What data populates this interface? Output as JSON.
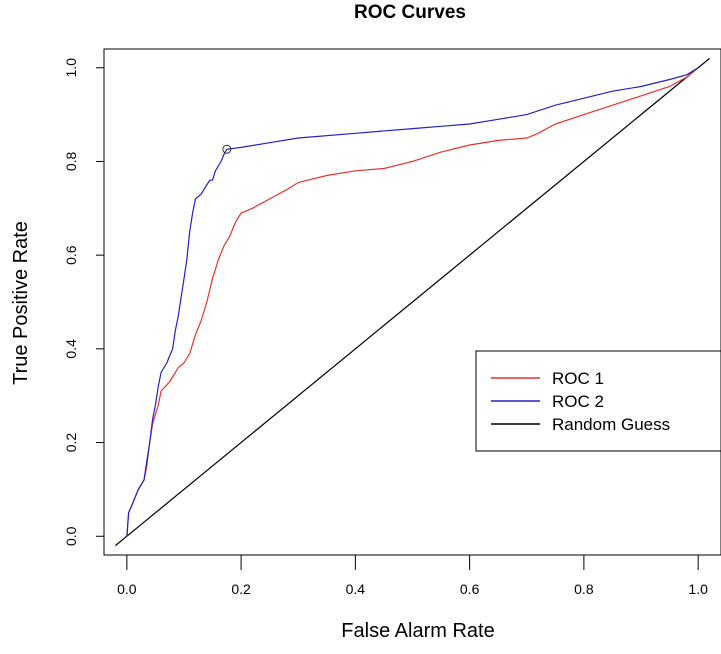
{
  "chart_data": {
    "type": "line",
    "title": "ROC Curves",
    "xlabel": "False Alarm Rate",
    "ylabel": "True Positive Rate",
    "xlim": [
      -0.04,
      1.04
    ],
    "ylim": [
      -0.04,
      1.04
    ],
    "x_ticks": [
      "0.0",
      "0.2",
      "0.4",
      "0.6",
      "0.8",
      "1.0"
    ],
    "y_ticks": [
      "0.0",
      "0.2",
      "0.4",
      "0.6",
      "0.8",
      "1.0"
    ],
    "grid": false,
    "legend_position": "right",
    "series": [
      {
        "name": "ROC 1",
        "color": "#e8322d",
        "points": [
          [
            0.0,
            0.0
          ],
          [
            0.003,
            0.05
          ],
          [
            0.01,
            0.07
          ],
          [
            0.02,
            0.1
          ],
          [
            0.03,
            0.12
          ],
          [
            0.035,
            0.15
          ],
          [
            0.04,
            0.2
          ],
          [
            0.045,
            0.24
          ],
          [
            0.05,
            0.26
          ],
          [
            0.055,
            0.28
          ],
          [
            0.06,
            0.31
          ],
          [
            0.075,
            0.33
          ],
          [
            0.08,
            0.34
          ],
          [
            0.09,
            0.36
          ],
          [
            0.1,
            0.37
          ],
          [
            0.11,
            0.39
          ],
          [
            0.12,
            0.43
          ],
          [
            0.13,
            0.46
          ],
          [
            0.14,
            0.5
          ],
          [
            0.15,
            0.55
          ],
          [
            0.16,
            0.59
          ],
          [
            0.17,
            0.62
          ],
          [
            0.18,
            0.64
          ],
          [
            0.19,
            0.67
          ],
          [
            0.2,
            0.69
          ],
          [
            0.22,
            0.7
          ],
          [
            0.25,
            0.72
          ],
          [
            0.28,
            0.74
          ],
          [
            0.3,
            0.755
          ],
          [
            0.35,
            0.77
          ],
          [
            0.4,
            0.78
          ],
          [
            0.45,
            0.785
          ],
          [
            0.5,
            0.8
          ],
          [
            0.55,
            0.82
          ],
          [
            0.6,
            0.835
          ],
          [
            0.65,
            0.845
          ],
          [
            0.7,
            0.85
          ],
          [
            0.72,
            0.86
          ],
          [
            0.75,
            0.88
          ],
          [
            0.8,
            0.9
          ],
          [
            0.85,
            0.92
          ],
          [
            0.9,
            0.94
          ],
          [
            0.95,
            0.96
          ],
          [
            0.98,
            0.98
          ],
          [
            0.99,
            0.99
          ],
          [
            1.0,
            1.0
          ]
        ]
      },
      {
        "name": "ROC 2",
        "color": "#2222cc",
        "points": [
          [
            0.0,
            0.0
          ],
          [
            0.003,
            0.05
          ],
          [
            0.01,
            0.07
          ],
          [
            0.02,
            0.1
          ],
          [
            0.03,
            0.12
          ],
          [
            0.035,
            0.16
          ],
          [
            0.04,
            0.2
          ],
          [
            0.045,
            0.25
          ],
          [
            0.05,
            0.28
          ],
          [
            0.055,
            0.32
          ],
          [
            0.06,
            0.35
          ],
          [
            0.065,
            0.36
          ],
          [
            0.07,
            0.37
          ],
          [
            0.08,
            0.4
          ],
          [
            0.085,
            0.44
          ],
          [
            0.09,
            0.47
          ],
          [
            0.095,
            0.51
          ],
          [
            0.1,
            0.55
          ],
          [
            0.105,
            0.59
          ],
          [
            0.11,
            0.65
          ],
          [
            0.115,
            0.69
          ],
          [
            0.12,
            0.72
          ],
          [
            0.13,
            0.73
          ],
          [
            0.14,
            0.75
          ],
          [
            0.145,
            0.76
          ],
          [
            0.15,
            0.76
          ],
          [
            0.155,
            0.78
          ],
          [
            0.16,
            0.79
          ],
          [
            0.165,
            0.8
          ],
          [
            0.17,
            0.815
          ],
          [
            0.175,
            0.826
          ],
          [
            0.2,
            0.83
          ],
          [
            0.25,
            0.84
          ],
          [
            0.3,
            0.85
          ],
          [
            0.4,
            0.86
          ],
          [
            0.5,
            0.87
          ],
          [
            0.55,
            0.875
          ],
          [
            0.6,
            0.88
          ],
          [
            0.65,
            0.89
          ],
          [
            0.7,
            0.9
          ],
          [
            0.75,
            0.92
          ],
          [
            0.8,
            0.935
          ],
          [
            0.85,
            0.95
          ],
          [
            0.9,
            0.96
          ],
          [
            0.95,
            0.975
          ],
          [
            0.98,
            0.985
          ],
          [
            1.0,
            1.0
          ]
        ]
      },
      {
        "name": "Random Guess",
        "color": "#000000",
        "points": [
          [
            -0.02,
            -0.02
          ],
          [
            1.02,
            1.02
          ]
        ]
      }
    ],
    "marker": {
      "x": 0.175,
      "y": 0.826,
      "series": "ROC 2"
    }
  }
}
